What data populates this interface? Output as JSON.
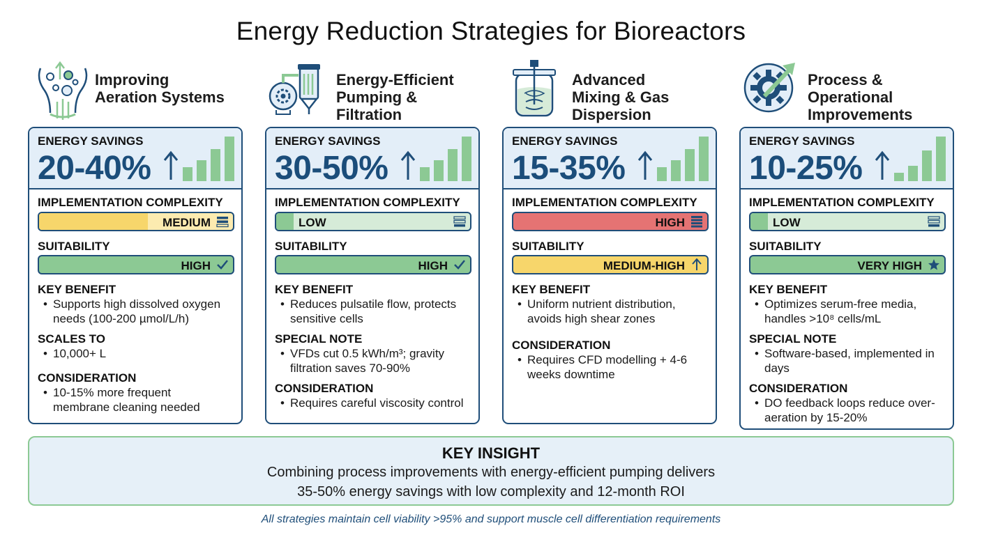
{
  "title": "Energy Reduction Strategies for Bioreactors",
  "colors": {
    "navy": "#1f4e79",
    "green": "#8cc994",
    "light_green": "#d6ebd8",
    "yellow": "#f7d66b",
    "red": "#e57373",
    "panel_blue": "#e3eef8"
  },
  "strategies": [
    {
      "title": "Improving Aeration Systems",
      "icon": "aeration-bubbles-icon",
      "savings_label": "ENERGY SAVINGS",
      "savings": "20-40%",
      "complexity_label": "IMPLEMENTATION COMPLEXITY",
      "complexity": "MEDIUM",
      "suitability_label": "SUITABILITY",
      "suitability": "HIGH",
      "sections": [
        {
          "heading": "KEY BENEFIT",
          "bullet": "Supports high dissolved oxygen needs (100-200 µmol/L/h)"
        },
        {
          "heading": "SCALES TO",
          "bullet": "10,000+ L"
        },
        {
          "heading": "CONSIDERATION",
          "bullet": "10-15% more frequent membrane cleaning needed"
        }
      ]
    },
    {
      "title": "Energy-Efficient Pumping & Filtration",
      "icon": "pump-filter-icon",
      "savings_label": "ENERGY SAVINGS",
      "savings": "30-50%",
      "complexity_label": "IMPLEMENTATION COMPLEXITY",
      "complexity": "LOW",
      "suitability_label": "SUITABILITY",
      "suitability": "HIGH",
      "sections": [
        {
          "heading": "KEY BENEFIT",
          "bullet": "Reduces pulsatile flow, protects sensitive cells"
        },
        {
          "heading": "SPECIAL NOTE",
          "bullet": "VFDs cut 0.5 kWh/m³; gravity filtration saves 70-90%"
        },
        {
          "heading": "CONSIDERATION",
          "bullet": "Requires careful viscosity control"
        }
      ]
    },
    {
      "title": "Advanced Mixing & Gas Dispersion",
      "icon": "mixing-vessel-icon",
      "savings_label": "ENERGY SAVINGS",
      "savings": "15-35%",
      "complexity_label": "IMPLEMENTATION COMPLEXITY",
      "complexity": "HIGH",
      "suitability_label": "SUITABILITY",
      "suitability": "MEDIUM-HIGH",
      "sections": [
        {
          "heading": "KEY BENEFIT",
          "bullet": "Uniform nutrient distribution, avoids high shear zones"
        },
        {
          "heading": "CONSIDERATION",
          "bullet": "Requires CFD modelling + 4-6 weeks downtime"
        }
      ]
    },
    {
      "title": "Process & Operational Improvements",
      "icon": "gear-arrow-icon",
      "savings_label": "ENERGY SAVINGS",
      "savings": "10-25%",
      "complexity_label": "IMPLEMENTATION COMPLEXITY",
      "complexity": "LOW",
      "suitability_label": "SUITABILITY",
      "suitability": "VERY HIGH",
      "sections": [
        {
          "heading": "KEY BENEFIT",
          "bullet": "Optimizes serum-free media, handles >10⁸ cells/mL"
        },
        {
          "heading": "SPECIAL NOTE",
          "bullet": "Software-based, implemented in days"
        },
        {
          "heading": "CONSIDERATION",
          "bullet": "DO feedback loops reduce over-aeration by 15-20%"
        }
      ]
    }
  ],
  "insight": {
    "heading": "KEY INSIGHT",
    "line1": "Combining process improvements with energy-efficient pumping delivers",
    "line2": "35-50% energy savings with low complexity and 12-month ROI"
  },
  "footer": "All strategies maintain cell viability >95% and support muscle cell differentiation requirements"
}
